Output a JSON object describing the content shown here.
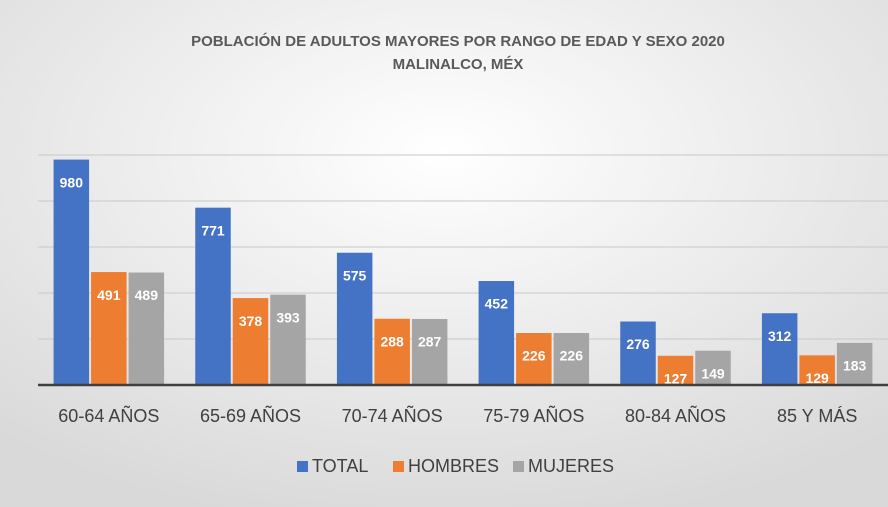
{
  "chart_data": {
    "type": "bar",
    "title": "POBLACIÓN DE ADULTOS MAYORES POR RANGO DE EDAD Y SEXO 2020",
    "subtitle": "MALINALCO, MÉX",
    "categories": [
      "60-64 AÑOS",
      "65-69 AÑOS",
      "70-74 AÑOS",
      "75-79 AÑOS",
      "80-84 AÑOS",
      "85 Y MÁS"
    ],
    "series": [
      {
        "name": "TOTAL",
        "color": "#4472c4",
        "values": [
          980,
          771,
          575,
          452,
          276,
          312
        ]
      },
      {
        "name": "HOMBRES",
        "color": "#ed7d31",
        "values": [
          491,
          378,
          288,
          226,
          127,
          129
        ]
      },
      {
        "name": "MUJERES",
        "color": "#a5a5a5",
        "values": [
          489,
          393,
          287,
          226,
          149,
          183
        ]
      }
    ],
    "ylim": [
      0,
      1000
    ],
    "yticks": [
      0,
      200,
      400,
      600,
      800,
      1000
    ],
    "grid": true,
    "legend": "bottom"
  }
}
